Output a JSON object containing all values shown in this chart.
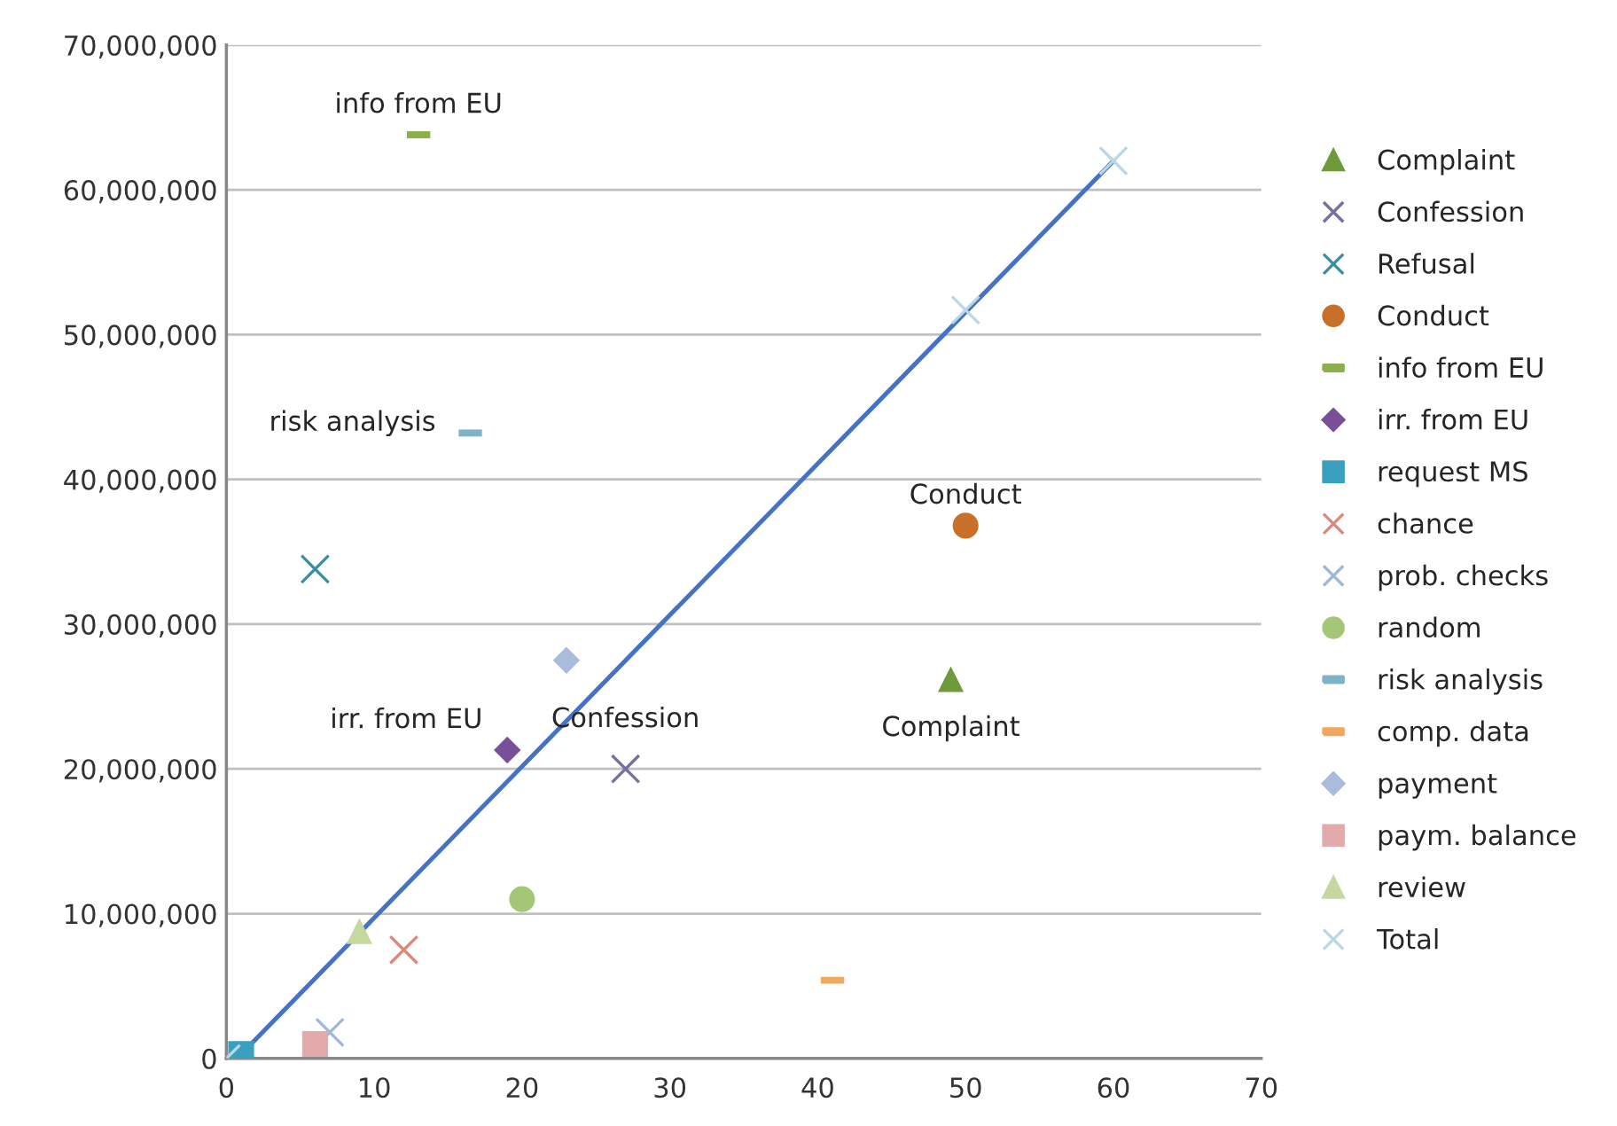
{
  "chart_data": {
    "type": "scatter",
    "series": [
      {
        "name": "Complaint",
        "color": "#6f9a3c",
        "marker": "triangle",
        "x": [
          49
        ],
        "values": [
          26200000
        ]
      },
      {
        "name": "Confession",
        "color": "#7a6e9c",
        "marker": "cross",
        "x": [
          27
        ],
        "values": [
          20000000
        ]
      },
      {
        "name": "Refusal",
        "color": "#3b8ea0",
        "marker": "cross",
        "x": [
          6
        ],
        "values": [
          33800000
        ]
      },
      {
        "name": "Conduct",
        "color": "#c8702a",
        "marker": "circle",
        "x": [
          50
        ],
        "values": [
          36800000
        ]
      },
      {
        "name": "info from EU",
        "color": "#8db04a",
        "x": [
          13
        ],
        "values": [
          63800000
        ]
      },
      {
        "name": "irr. from EU",
        "color": "#7a4f9a",
        "marker": "diamond",
        "x": [
          19
        ],
        "values": [
          21300000
        ]
      },
      {
        "name": "request MS",
        "color": "#3aa0c0",
        "marker": "square",
        "x": [
          1
        ],
        "values": [
          300000
        ]
      },
      {
        "name": "chance",
        "color": "#d98880",
        "marker": "cross",
        "x": [
          12
        ],
        "values": [
          7500000
        ]
      },
      {
        "name": "prob. checks",
        "color": "#9db8d8",
        "marker": "cross",
        "x": [
          7
        ],
        "values": [
          1800000
        ]
      },
      {
        "name": "random",
        "color": "#a4c777",
        "marker": "circle",
        "x": [
          20
        ],
        "values": [
          11000000
        ]
      },
      {
        "name": "risk analysis",
        "color": "#7fb3c8",
        "x": [
          16.5
        ],
        "values": [
          43200000
        ]
      },
      {
        "name": "comp. data",
        "color": "#f0a860",
        "x": [
          41
        ],
        "values": [
          5400000
        ]
      },
      {
        "name": "payment",
        "color": "#a9bcdc",
        "marker": "diamond",
        "x": [
          23
        ],
        "values": [
          27500000
        ]
      },
      {
        "name": "paym. balance",
        "color": "#e2aaaa",
        "marker": "square",
        "x": [
          6
        ],
        "values": [
          1000000
        ]
      },
      {
        "name": "review",
        "color": "#c4d8a0",
        "marker": "triangle",
        "x": [
          9
        ],
        "values": [
          8800000
        ]
      },
      {
        "name": "Total",
        "color": "#b8d8e8",
        "marker": "cross",
        "x": [
          0,
          50,
          60
        ],
        "values": [
          0,
          51700000,
          62000000
        ]
      },
      {
        "type": "line",
        "color": "#4472c4",
        "x": [
          1,
          60
        ],
        "values": [
          300000,
          62000000
        ]
      }
    ],
    "annotations": [
      {
        "text": "info from EU",
        "x": 13,
        "y": 63800000
      },
      {
        "text": "risk analysis",
        "x": 16.5,
        "y": 43200000
      },
      {
        "text": "irr. from EU",
        "x": 19,
        "y": 21300000
      },
      {
        "text": "Confession",
        "x": 27,
        "y": 20000000
      },
      {
        "text": "Conduct",
        "x": 50,
        "y": 36800000
      },
      {
        "text": "Complaint",
        "x": 49,
        "y": 26200000
      }
    ],
    "xlim": [
      0,
      70
    ],
    "xticks": [
      0,
      10,
      20,
      30,
      40,
      50,
      60,
      70
    ],
    "ylim": [
      0,
      70000000
    ],
    "yticks": [
      {
        "value": 0,
        "label": "0"
      },
      {
        "value": 10000000,
        "label": "10,000,000"
      },
      {
        "value": 20000000,
        "label": "20,000,000"
      },
      {
        "value": 30000000,
        "label": "30,000,000"
      },
      {
        "value": 40000000,
        "label": "40,000,000"
      },
      {
        "value": 50000000,
        "label": "50,000,000"
      },
      {
        "value": 60000000,
        "label": "60,000,000"
      },
      {
        "value": 70000000,
        "label": "70,000,000"
      }
    ],
    "grid": "y",
    "legend": "right"
  }
}
